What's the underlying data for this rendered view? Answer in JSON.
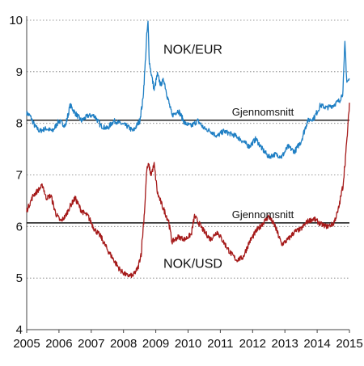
{
  "chart_data": {
    "type": "line",
    "title": "",
    "xlabel": "",
    "ylabel": "",
    "xlim": [
      2005,
      2015
    ],
    "ylim": [
      4,
      10
    ],
    "x_ticks": [
      "2005",
      "2006",
      "2007",
      "2008",
      "2009",
      "2010",
      "2011",
      "2012",
      "2013",
      "2014",
      "2015"
    ],
    "y_ticks": [
      "4",
      "5",
      "6",
      "7",
      "8",
      "9",
      "10"
    ],
    "grid": "horizontal dotted",
    "legend": "none",
    "series": [
      {
        "name": "NOK/EUR",
        "color": "#1f7fc4",
        "x": [
          2005.0,
          2005.1,
          2005.25,
          2005.4,
          2005.6,
          2005.8,
          2006.0,
          2006.2,
          2006.35,
          2006.5,
          2006.7,
          2006.9,
          2007.1,
          2007.3,
          2007.5,
          2007.7,
          2007.9,
          2008.1,
          2008.3,
          2008.5,
          2008.6,
          2008.65,
          2008.72,
          2008.76,
          2008.8,
          2008.85,
          2008.95,
          2009.05,
          2009.15,
          2009.25,
          2009.35,
          2009.5,
          2009.7,
          2009.9,
          2010.1,
          2010.3,
          2010.5,
          2010.7,
          2010.9,
          2011.1,
          2011.3,
          2011.5,
          2011.7,
          2011.9,
          2012.1,
          2012.3,
          2012.5,
          2012.7,
          2012.9,
          2013.1,
          2013.3,
          2013.5,
          2013.7,
          2013.9,
          2014.1,
          2014.3,
          2014.5,
          2014.7,
          2014.8,
          2014.86,
          2014.92,
          2015.0
        ],
        "values": [
          8.2,
          8.15,
          7.95,
          7.85,
          7.9,
          7.85,
          8.05,
          7.95,
          8.35,
          8.2,
          8.05,
          8.15,
          8.15,
          7.95,
          7.9,
          8.05,
          8.0,
          7.95,
          7.85,
          8.05,
          8.45,
          8.9,
          9.7,
          9.95,
          9.2,
          9.0,
          8.65,
          8.95,
          8.75,
          8.85,
          8.55,
          8.15,
          8.25,
          8.0,
          7.95,
          8.05,
          7.9,
          7.85,
          7.75,
          7.85,
          7.8,
          7.75,
          7.65,
          7.55,
          7.7,
          7.5,
          7.35,
          7.4,
          7.35,
          7.55,
          7.45,
          7.65,
          8.05,
          8.1,
          8.35,
          8.3,
          8.35,
          8.45,
          8.6,
          9.55,
          8.8,
          8.85
        ]
      },
      {
        "name": "NOK/USD",
        "color": "#a51a1a",
        "x": [
          2005.0,
          2005.1,
          2005.2,
          2005.35,
          2005.5,
          2005.6,
          2005.75,
          2005.9,
          2006.05,
          2006.2,
          2006.35,
          2006.5,
          2006.7,
          2006.9,
          2007.1,
          2007.3,
          2007.5,
          2007.7,
          2007.9,
          2008.1,
          2008.3,
          2008.45,
          2008.55,
          2008.65,
          2008.72,
          2008.78,
          2008.85,
          2008.95,
          2009.05,
          2009.2,
          2009.4,
          2009.5,
          2009.7,
          2009.9,
          2010.1,
          2010.2,
          2010.4,
          2010.5,
          2010.7,
          2010.9,
          2011.1,
          2011.3,
          2011.5,
          2011.7,
          2011.9,
          2012.1,
          2012.3,
          2012.5,
          2012.7,
          2012.9,
          2013.1,
          2013.3,
          2013.5,
          2013.7,
          2013.9,
          2014.1,
          2014.3,
          2014.5,
          2014.65,
          2014.8,
          2014.9,
          2014.96,
          2015.0
        ],
        "values": [
          6.3,
          6.45,
          6.6,
          6.7,
          6.8,
          6.55,
          6.6,
          6.25,
          6.1,
          6.2,
          6.4,
          6.55,
          6.3,
          6.2,
          5.95,
          5.8,
          5.55,
          5.35,
          5.15,
          5.05,
          5.05,
          5.2,
          5.5,
          6.3,
          7.1,
          7.2,
          7.0,
          7.2,
          6.65,
          6.4,
          6.1,
          5.7,
          5.8,
          5.75,
          5.85,
          6.2,
          6.0,
          5.9,
          5.75,
          5.9,
          5.7,
          5.5,
          5.35,
          5.4,
          5.7,
          5.9,
          6.05,
          6.2,
          6.0,
          5.65,
          5.75,
          5.9,
          5.95,
          6.1,
          6.15,
          6.05,
          6.0,
          6.05,
          6.3,
          6.8,
          7.5,
          8.0,
          8.4
        ]
      }
    ],
    "reference_lines": [
      {
        "y": 8.06,
        "label": "Gjennomsnitt"
      },
      {
        "y": 6.07,
        "label": "Gjennomsnitt"
      }
    ],
    "annotations": [
      {
        "text": "NOK/EUR",
        "x": 2010.15,
        "y": 9.35
      },
      {
        "text": "NOK/USD",
        "x": 2010.15,
        "y": 5.2
      }
    ]
  }
}
